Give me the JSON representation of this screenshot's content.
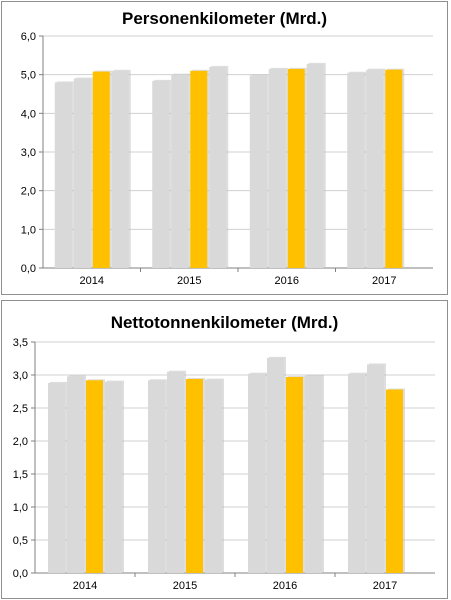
{
  "chart_data": [
    {
      "type": "bar",
      "title": "Personenkilometer (Mrd.)",
      "categories": [
        "2014",
        "2015",
        "2016",
        "2017"
      ],
      "y_ticks": [
        "0,0",
        "1,0",
        "2,0",
        "3,0",
        "4,0",
        "5,0",
        "6,0"
      ],
      "ylim": [
        0,
        6
      ],
      "grid": "horizontal",
      "series": [
        {
          "values": [
            4.8,
            4.84,
            4.98,
            5.05
          ],
          "color": "#d9d9d9"
        },
        {
          "values": [
            4.9,
            5.0,
            5.15,
            5.13
          ],
          "color": "#d9d9d9"
        },
        {
          "values": [
            5.08,
            5.1,
            5.15,
            5.13
          ],
          "color": "#ffc000"
        },
        {
          "values": [
            5.1,
            5.2,
            5.28,
            null
          ],
          "color": "#d9d9d9"
        }
      ]
    },
    {
      "type": "bar",
      "title": "Nettotonnenkilometer (Mrd.)",
      "categories": [
        "2014",
        "2015",
        "2016",
        "2017"
      ],
      "y_ticks": [
        "0,0",
        "0,5",
        "1,0",
        "1,5",
        "2,0",
        "2,5",
        "3,0",
        "3,5"
      ],
      "ylim": [
        0,
        3.5
      ],
      "grid": "horizontal",
      "series": [
        {
          "values": [
            2.88,
            2.92,
            3.02,
            3.02
          ],
          "color": "#d9d9d9"
        },
        {
          "values": [
            2.98,
            3.05,
            3.26,
            3.16
          ],
          "color": "#d9d9d9"
        },
        {
          "values": [
            2.92,
            2.94,
            2.97,
            2.78
          ],
          "color": "#ffc000"
        },
        {
          "values": [
            2.9,
            2.93,
            2.99,
            null
          ],
          "color": "#d9d9d9"
        }
      ]
    }
  ]
}
